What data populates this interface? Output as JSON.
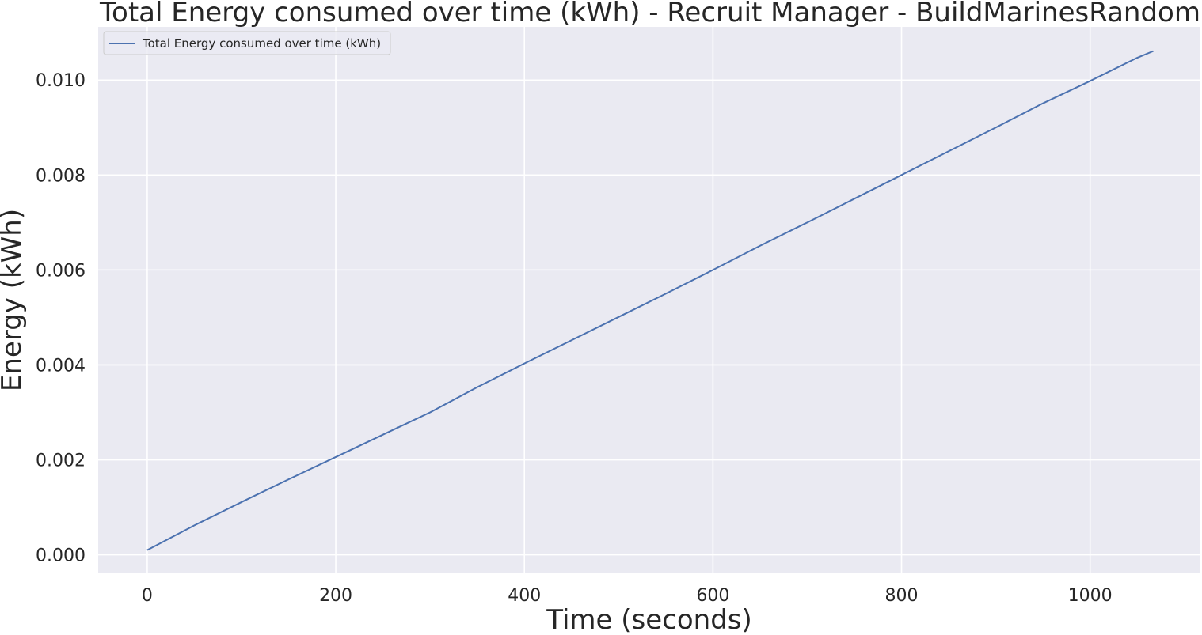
{
  "chart_data": {
    "type": "line",
    "title": "Total Energy consumed over time (kWh) - Recruit Manager - BuildMarinesRandom",
    "xlabel": "Time (seconds)",
    "ylabel": "Energy (kWh)",
    "xlim": [
      -52,
      1117
    ],
    "ylim": [
      -0.00039,
      0.01112
    ],
    "x_ticks": [
      0,
      200,
      400,
      600,
      800,
      1000
    ],
    "x_tick_labels": [
      "0",
      "200",
      "400",
      "600",
      "800",
      "1000"
    ],
    "y_ticks": [
      0.0,
      0.002,
      0.004,
      0.006,
      0.008,
      0.01
    ],
    "y_tick_labels": [
      "0.000",
      "0.002",
      "0.004",
      "0.006",
      "0.008",
      "0.010"
    ],
    "grid": true,
    "legend_position": "top-left",
    "background_color": "#eaeaf2",
    "grid_color": "#ffffff",
    "series": [
      {
        "name": "Total Energy consumed over time (kWh)",
        "color": "#4c72b0",
        "x": [
          0,
          50,
          100,
          150,
          200,
          250,
          300,
          350,
          400,
          450,
          500,
          550,
          600,
          650,
          700,
          750,
          800,
          850,
          900,
          950,
          1000,
          1050,
          1067
        ],
        "y": [
          0.0001,
          0.00062,
          0.00111,
          0.00159,
          0.00206,
          0.00253,
          0.003,
          0.00353,
          0.00403,
          0.00452,
          0.00501,
          0.0055,
          0.006,
          0.00651,
          0.007,
          0.0075,
          0.008,
          0.0085,
          0.009,
          0.00951,
          0.00998,
          0.01047,
          0.01061
        ]
      }
    ]
  }
}
